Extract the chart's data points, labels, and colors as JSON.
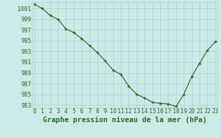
{
  "x": [
    0,
    1,
    2,
    3,
    4,
    5,
    6,
    7,
    8,
    9,
    10,
    11,
    12,
    13,
    14,
    15,
    16,
    17,
    18,
    19,
    20,
    21,
    22,
    23
  ],
  "y": [
    1001.8,
    1001.0,
    999.7,
    999.0,
    997.2,
    996.5,
    995.4,
    994.1,
    992.8,
    991.2,
    989.5,
    988.7,
    986.5,
    985.0,
    984.3,
    983.5,
    983.3,
    983.2,
    982.7,
    985.0,
    988.3,
    990.8,
    993.2,
    994.8
  ],
  "ylim_min": 982.5,
  "ylim_max": 1002.2,
  "yticks": [
    983,
    985,
    987,
    989,
    991,
    993,
    995,
    997,
    999,
    1001
  ],
  "xticks": [
    0,
    1,
    2,
    3,
    4,
    5,
    6,
    7,
    8,
    9,
    10,
    11,
    12,
    13,
    14,
    15,
    16,
    17,
    18,
    19,
    20,
    21,
    22,
    23
  ],
  "xlabel": "Graphe pression niveau de la mer (hPa)",
  "line_color": "#2d6a2d",
  "marker_color": "#2d6a2d",
  "bg_color": "#cceae7",
  "grid_color": "#aacfcc",
  "tick_label_color": "#2d6a2d",
  "xlabel_color": "#2d6a2d",
  "xlabel_fontsize": 7.5,
  "tick_fontsize": 6.0
}
